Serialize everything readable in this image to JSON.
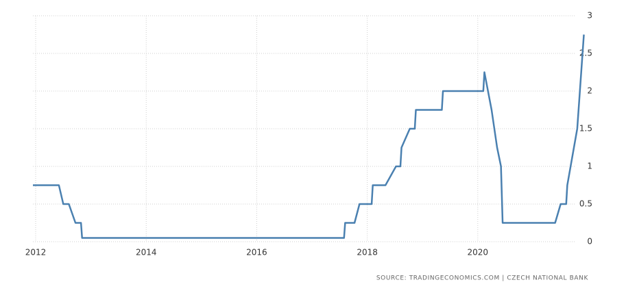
{
  "chart_data": {
    "type": "line",
    "x": [
      2011.95,
      2012.42,
      2012.5,
      2012.6,
      2012.72,
      2012.82,
      2012.84,
      2017.58,
      2017.6,
      2017.77,
      2017.86,
      2018.08,
      2018.1,
      2018.33,
      2018.52,
      2018.6,
      2018.62,
      2018.77,
      2018.86,
      2018.88,
      2019.35,
      2019.37,
      2020.1,
      2020.12,
      2020.25,
      2020.35,
      2020.42,
      2020.45,
      2021.4,
      2021.5,
      2021.6,
      2021.62,
      2021.8,
      2021.92
    ],
    "values": [
      0.75,
      0.75,
      0.5,
      0.5,
      0.25,
      0.25,
      0.05,
      0.05,
      0.25,
      0.25,
      0.5,
      0.5,
      0.75,
      0.75,
      1,
      1,
      1.25,
      1.5,
      1.5,
      1.75,
      1.75,
      2,
      2,
      2.25,
      1.75,
      1.25,
      1,
      0.25,
      0.25,
      0.5,
      0.5,
      0.75,
      1.5,
      2.75
    ],
    "color": "#4a80b0",
    "xlim": [
      2011.95,
      2022
    ],
    "xticks": [
      2012,
      2014,
      2016,
      2018,
      2020
    ],
    "ylim": [
      0,
      3
    ],
    "yticks": [
      0,
      0.5,
      1,
      1.5,
      2,
      2.5,
      3
    ],
    "grid": true,
    "source": "SOURCE: TRADINGECONOMICS.COM | CZECH NATIONAL BANK"
  }
}
